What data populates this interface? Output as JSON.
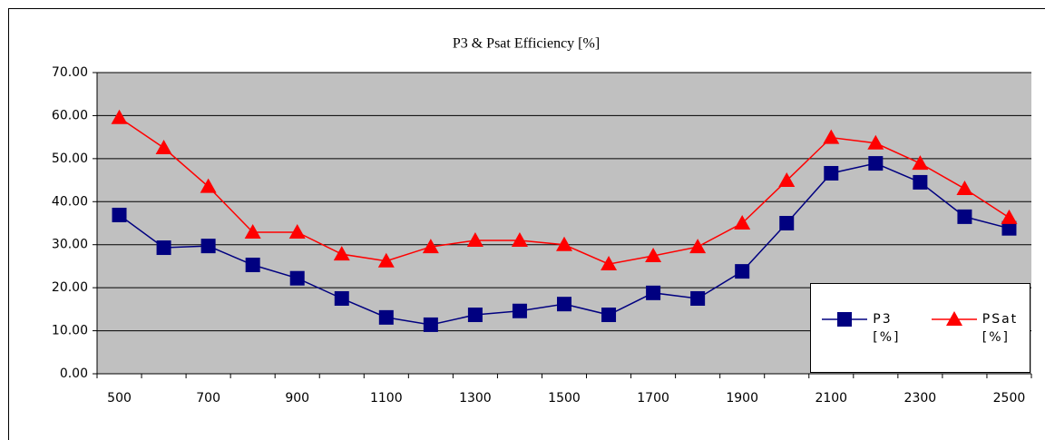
{
  "chart_data": {
    "type": "line",
    "title": "P3 & Psat Efficiency [%]",
    "categories": [
      "500",
      null,
      "700",
      null,
      "900",
      null,
      "1100",
      null,
      "1300",
      null,
      "1500",
      null,
      "1700",
      null,
      "1900",
      null,
      "2100",
      null,
      "2300",
      null,
      "2500"
    ],
    "series": [
      {
        "name": "P3 [%]",
        "color": "#000080",
        "marker": "square",
        "values": [
          36.9,
          29.3,
          29.7,
          25.3,
          22.2,
          17.5,
          13.1,
          11.4,
          13.7,
          14.6,
          16.2,
          13.7,
          18.8,
          17.5,
          23.8,
          35.0,
          46.6,
          48.9,
          44.5,
          36.5,
          33.8
        ]
      },
      {
        "name": "PSat [%]",
        "color": "#ff0000",
        "marker": "triangle",
        "values": [
          59.5,
          52.5,
          43.5,
          32.9,
          32.9,
          27.8,
          26.2,
          29.5,
          31.0,
          31.0,
          30.0,
          25.5,
          27.4,
          29.5,
          35.0,
          44.9,
          54.9,
          53.6,
          48.9,
          43.0,
          36.3
        ]
      }
    ],
    "ylim": [
      0,
      70
    ],
    "yticks": [
      {
        "value": 0,
        "label": "0.00"
      },
      {
        "value": 10,
        "label": "10.00"
      },
      {
        "value": 20,
        "label": "20.00"
      },
      {
        "value": 30,
        "label": "30.00"
      },
      {
        "value": 40,
        "label": "40.00"
      },
      {
        "value": 50,
        "label": "50.00"
      },
      {
        "value": 60,
        "label": "60.00"
      },
      {
        "value": 70,
        "label": "70.00"
      }
    ],
    "grid": true,
    "legend": "lower right",
    "plot_background": "#c0c0c0"
  }
}
